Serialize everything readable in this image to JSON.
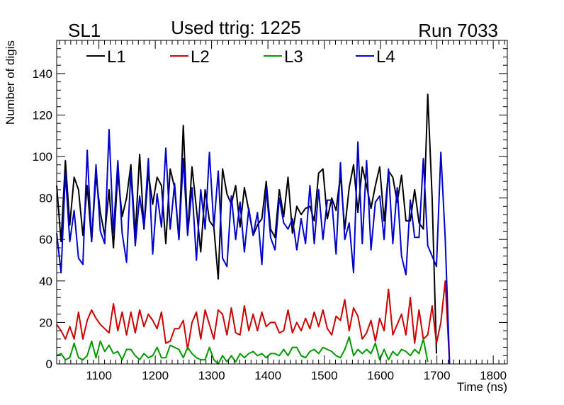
{
  "chart_data": {
    "type": "line",
    "title_left": "SL1",
    "title_center": "Used ttrig: 1225",
    "title_right": "Run 7033",
    "xlabel": "Time (ns)",
    "ylabel": "Number of digis",
    "xlim": [
      1025,
      1825
    ],
    "ylim": [
      0,
      156
    ],
    "xticks": [
      1100,
      1200,
      1300,
      1400,
      1500,
      1600,
      1700,
      1800
    ],
    "xtick_labels": [
      "1100",
      "1200",
      "1300",
      "1400",
      "1500",
      "1600",
      "1700",
      "1800"
    ],
    "yticks": [
      0,
      20,
      40,
      60,
      80,
      100,
      120,
      140
    ],
    "ytick_labels": [
      "0",
      "20",
      "40",
      "60",
      "80",
      "100",
      "120",
      "140"
    ],
    "x_start": 1025,
    "x_step": 7.75,
    "series": [
      {
        "name": "L1",
        "color": "#000000",
        "values": [
          86,
          59,
          98,
          67,
          90,
          84,
          62,
          86,
          59,
          91,
          73,
          62,
          84,
          56,
          92,
          71,
          80,
          96,
          62,
          101,
          65,
          92,
          77,
          90,
          86,
          58,
          94,
          85,
          60,
          115,
          63,
          95,
          75,
          54,
          84,
          69,
          66,
          41,
          94,
          82,
          77,
          86,
          66,
          85,
          74,
          62,
          67,
          70,
          88,
          65,
          61,
          84,
          71,
          90,
          63,
          76,
          72,
          75,
          76,
          69,
          92,
          94,
          70,
          80,
          74,
          91,
          65,
          85,
          96,
          73,
          95,
          86,
          75,
          86,
          95,
          69,
          93,
          90,
          78,
          91,
          69,
          69,
          84,
          68,
          65,
          130,
          80,
          5
        ]
      },
      {
        "name": "L2",
        "color": "#cc0000",
        "values": [
          19,
          16,
          12,
          18,
          12,
          25,
          12,
          21,
          26,
          22,
          19,
          17,
          15,
          29,
          16,
          25,
          14,
          25,
          15,
          26,
          18,
          24,
          21,
          17,
          25,
          10,
          11,
          17,
          17,
          21,
          7,
          20,
          25,
          12,
          26,
          19,
          12,
          26,
          24,
          14,
          27,
          15,
          14,
          28,
          16,
          24,
          16,
          25,
          18,
          20,
          20,
          15,
          16,
          26,
          15,
          20,
          16,
          22,
          17,
          25,
          18,
          26,
          17,
          14,
          23,
          21,
          31,
          16,
          27,
          23,
          12,
          15,
          21,
          11,
          22,
          16,
          36,
          14,
          19,
          24,
          14,
          32,
          10,
          26,
          12,
          14,
          28,
          10,
          20,
          40,
          0
        ]
      },
      {
        "name": "L3",
        "color": "#009900",
        "values": [
          4,
          5,
          2,
          3,
          10,
          3,
          2,
          4,
          11,
          3,
          11,
          6,
          9,
          5,
          6,
          2,
          7,
          7,
          4,
          2,
          5,
          3,
          4,
          8,
          3,
          3,
          9,
          8,
          7,
          3,
          8,
          5,
          3,
          2,
          2,
          8,
          2,
          0,
          4,
          1,
          4,
          1,
          5,
          3,
          5,
          6,
          4,
          5,
          3,
          5,
          5,
          4,
          7,
          4,
          8,
          8,
          4,
          3,
          6,
          7,
          5,
          8,
          7,
          6,
          4,
          3,
          7,
          13,
          4,
          7,
          5,
          7,
          5,
          10,
          2,
          7,
          2,
          6,
          4,
          7,
          6,
          4,
          7,
          5,
          12,
          1
        ]
      },
      {
        "name": "L4",
        "color": "#0000cc",
        "values": [
          63,
          44,
          92,
          59,
          74,
          51,
          48,
          103,
          59,
          96,
          64,
          58,
          113,
          63,
          98,
          63,
          49,
          93,
          57,
          81,
          66,
          99,
          53,
          82,
          66,
          104,
          65,
          87,
          60,
          99,
          62,
          85,
          50,
          84,
          65,
          102,
          66,
          93,
          51,
          47,
          81,
          60,
          78,
          54,
          75,
          62,
          73,
          48,
          85,
          61,
          55,
          80,
          68,
          65,
          70,
          55,
          70,
          58,
          86,
          58,
          84,
          60,
          79,
          79,
          53,
          97,
          60,
          68,
          44,
          107,
          58,
          98,
          55,
          78,
          81,
          60,
          94,
          58,
          85,
          52,
          43,
          79,
          61,
          61,
          99,
          57,
          52,
          47,
          102,
          60,
          0
        ]
      }
    ]
  }
}
